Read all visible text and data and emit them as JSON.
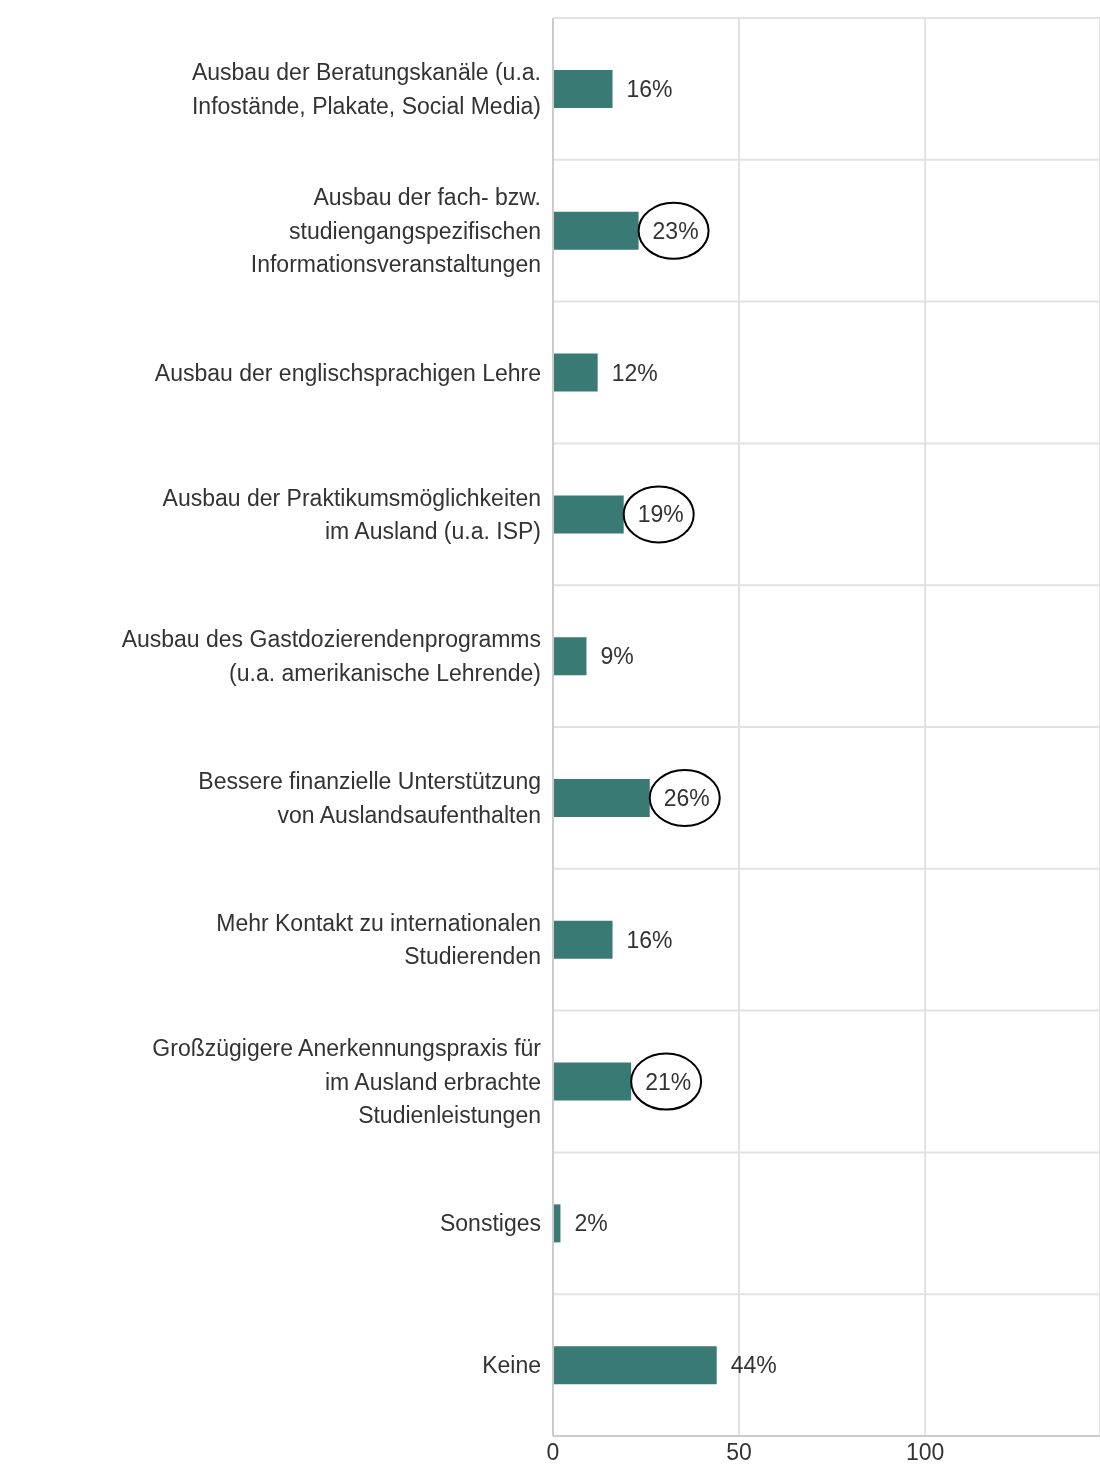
{
  "chart_data": {
    "type": "bar",
    "orientation": "horizontal",
    "categories": [
      "Ausbau der Beratungskanäle (u.a. Infostände, Plakate, Social Media)",
      "Ausbau der fach- bzw. studiengangspezifischen Informationsveranstaltungen",
      "Ausbau der englischsprachigen Lehre",
      "Ausbau der Praktikumsmöglichkeiten im Ausland (u.a. ISP)",
      "Ausbau des Gastdozierendenprogramms (u.a. amerikanische Lehrende)",
      "Bessere finanzielle Unterstützung von Auslandsaufenthalten",
      "Mehr Kontakt zu internationalen Studierenden",
      "Großzügigere Anerkennungspraxis für im Ausland erbrachte Studienleistungen",
      "Sonstiges",
      "Keine"
    ],
    "values": [
      16,
      23,
      12,
      19,
      9,
      26,
      16,
      21,
      2,
      44
    ],
    "value_labels": [
      "16%",
      "23%",
      "12%",
      "19%",
      "9%",
      "26%",
      "16%",
      "21%",
      "2%",
      "44%"
    ],
    "color": "#3a7a74",
    "xlim": [
      0,
      147
    ],
    "xticks": [
      0,
      50,
      100
    ],
    "grid": true
  }
}
